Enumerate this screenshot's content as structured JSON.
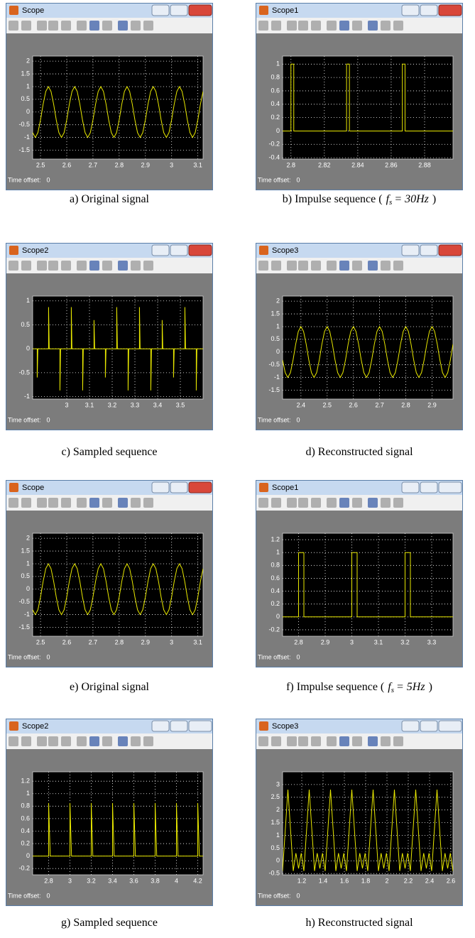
{
  "chart_data": [
    {
      "type": "line",
      "title": "Scope",
      "caption": "a) Original signal",
      "time_offset_label": "Time offset:",
      "time_offset": 0,
      "color": "#e8e800",
      "grid": true,
      "xlim": [
        2.47,
        3.12
      ],
      "ylim": [
        -1.85,
        2.2
      ],
      "xticks": [
        2.5,
        2.6,
        2.7,
        2.8,
        2.9,
        3,
        3.1
      ],
      "yticks": [
        -1.5,
        -1,
        -0.5,
        0,
        0.5,
        1,
        1.5,
        2
      ],
      "x": [
        2.47,
        2.48,
        2.49,
        2.5,
        2.51,
        2.52,
        2.53,
        2.54,
        2.55,
        2.56,
        2.57,
        2.58,
        2.59,
        2.6,
        2.61,
        2.62,
        2.63,
        2.64,
        2.65,
        2.66,
        2.67,
        2.68,
        2.69,
        2.7,
        2.71,
        2.72,
        2.73,
        2.74,
        2.75,
        2.76,
        2.77,
        2.78,
        2.79,
        2.8,
        2.81,
        2.82,
        2.83,
        2.84,
        2.85,
        2.86,
        2.87,
        2.88,
        2.89,
        2.9,
        2.91,
        2.92,
        2.93,
        2.94,
        2.95,
        2.96,
        2.97,
        2.98,
        2.99,
        3,
        3.01,
        3.02,
        3.03,
        3.04,
        3.05,
        3.06,
        3.07,
        3.08,
        3.09,
        3.1,
        3.11,
        3.12
      ],
      "values": [
        -0.81,
        -1,
        -0.81,
        -0.31,
        0.31,
        0.81,
        1,
        0.81,
        0.31,
        -0.31,
        -0.81,
        -1,
        -0.81,
        -0.31,
        0.31,
        0.81,
        1,
        0.81,
        0.31,
        -0.31,
        -0.81,
        -1,
        -0.81,
        -0.31,
        0.31,
        0.81,
        1,
        0.81,
        0.31,
        -0.31,
        -0.81,
        -1,
        -0.81,
        -0.31,
        0.31,
        0.81,
        1,
        0.81,
        0.31,
        -0.31,
        -0.81,
        -1,
        -0.81,
        -0.31,
        0.31,
        0.81,
        1,
        0.81,
        0.31,
        -0.31,
        -0.81,
        -1,
        -0.81,
        -0.31,
        0.31,
        0.81,
        1,
        0.81,
        0.31,
        -0.31,
        -0.81,
        -1,
        -0.81,
        -0.31,
        0.31,
        0.81
      ]
    },
    {
      "type": "line",
      "title": "Scope1",
      "caption": "b) Impulse sequence (",
      "fs_symbol": "f",
      "fs_subscript": "s",
      "fs_value": "= 30Hz",
      "caption_end": ")",
      "time_offset_label": "Time offset:",
      "time_offset": 0,
      "color": "#e8e800",
      "grid": true,
      "xlim": [
        2.795,
        2.897
      ],
      "ylim": [
        -0.42,
        1.12
      ],
      "xticks": [
        2.8,
        2.82,
        2.84,
        2.86,
        2.88
      ],
      "yticks": [
        -0.4,
        -0.2,
        0,
        0.2,
        0.4,
        0.6,
        0.8,
        1
      ],
      "x": [
        2.795,
        2.8,
        2.8,
        2.8017,
        2.8017,
        2.8333,
        2.8333,
        2.835,
        2.835,
        2.8667,
        2.8667,
        2.8683,
        2.8683,
        2.897
      ],
      "values": [
        0,
        0,
        1,
        1,
        0,
        0,
        1,
        1,
        0,
        0,
        1,
        1,
        0,
        0
      ]
    },
    {
      "type": "line",
      "title": "Scope2",
      "caption": "c) Sampled sequence",
      "time_offset_label": "Time offset:",
      "time_offset": 0,
      "color": "#e8e800",
      "grid": true,
      "xlim": [
        2.85,
        3.6
      ],
      "ylim": [
        -1.05,
        1.1
      ],
      "xticks": [
        3,
        3.1,
        3.2,
        3.3,
        3.4,
        3.5
      ],
      "yticks": [
        -1,
        -0.5,
        0,
        0.5,
        1
      ],
      "x": [
        2.85,
        2.87,
        2.87,
        2.873,
        2.92,
        2.92,
        2.923,
        2.97,
        2.97,
        2.973,
        3.02,
        3.02,
        3.023,
        3.07,
        3.07,
        3.073,
        3.12,
        3.12,
        3.123,
        3.17,
        3.17,
        3.173,
        3.22,
        3.22,
        3.223,
        3.27,
        3.27,
        3.273,
        3.32,
        3.32,
        3.323,
        3.37,
        3.37,
        3.373,
        3.42,
        3.42,
        3.423,
        3.47,
        3.47,
        3.473,
        3.52,
        3.52,
        3.523,
        3.57,
        3.57,
        3.573,
        3.6
      ],
      "values": [
        0,
        0,
        -0.6,
        0,
        0,
        0.87,
        0,
        0,
        -0.87,
        0,
        0,
        0.87,
        0,
        0,
        -0.87,
        0,
        0,
        0.6,
        0,
        0,
        -0.6,
        0,
        0,
        0.87,
        0,
        0,
        -0.87,
        0,
        0,
        0.87,
        0,
        0,
        -0.87,
        0,
        0,
        0.6,
        0,
        0,
        -0.6,
        0,
        0,
        0.87,
        0,
        0,
        -0.87,
        0,
        0
      ]
    },
    {
      "type": "line",
      "title": "Scope3",
      "caption": "d) Reconstructed signal",
      "time_offset_label": "Time offset:",
      "time_offset": 0,
      "color": "#e8e800",
      "grid": true,
      "xlim": [
        2.33,
        2.98
      ],
      "ylim": [
        -1.85,
        2.2
      ],
      "xticks": [
        2.4,
        2.5,
        2.6,
        2.7,
        2.8,
        2.9
      ],
      "yticks": [
        -1.5,
        -1,
        -0.5,
        0,
        0.5,
        1,
        1.5,
        2
      ],
      "x": [
        2.33,
        2.34,
        2.35,
        2.36,
        2.37,
        2.38,
        2.39,
        2.4,
        2.41,
        2.42,
        2.43,
        2.44,
        2.45,
        2.46,
        2.47,
        2.48,
        2.49,
        2.5,
        2.51,
        2.52,
        2.53,
        2.54,
        2.55,
        2.56,
        2.57,
        2.58,
        2.59,
        2.6,
        2.61,
        2.62,
        2.63,
        2.64,
        2.65,
        2.66,
        2.67,
        2.68,
        2.69,
        2.7,
        2.71,
        2.72,
        2.73,
        2.74,
        2.75,
        2.76,
        2.77,
        2.78,
        2.79,
        2.8,
        2.81,
        2.82,
        2.83,
        2.84,
        2.85,
        2.86,
        2.87,
        2.88,
        2.89,
        2.9,
        2.91,
        2.92,
        2.93,
        2.94,
        2.95,
        2.96,
        2.97,
        2.98
      ],
      "values": [
        -0.31,
        -0.81,
        -1,
        -0.81,
        -0.31,
        0.31,
        0.81,
        1,
        0.81,
        0.31,
        -0.31,
        -0.81,
        -1,
        -0.81,
        -0.31,
        0.31,
        0.81,
        1,
        0.81,
        0.31,
        -0.31,
        -0.81,
        -1,
        -0.81,
        -0.31,
        0.31,
        0.81,
        1,
        0.81,
        0.31,
        -0.31,
        -0.81,
        -1,
        -0.81,
        -0.31,
        0.31,
        0.81,
        1,
        0.81,
        0.31,
        -0.31,
        -0.81,
        -1,
        -0.81,
        -0.31,
        0.31,
        0.81,
        1,
        0.81,
        0.31,
        -0.31,
        -0.81,
        -1,
        -0.81,
        -0.31,
        0.31,
        0.81,
        1,
        0.81,
        0.31,
        -0.31,
        -0.81,
        -1,
        -0.81,
        -0.31,
        0.31
      ]
    },
    {
      "type": "line",
      "title": "Scope",
      "caption": "e) Original signal",
      "time_offset_label": "Time offset:",
      "time_offset": 0,
      "color": "#e8e800",
      "grid": true,
      "xlim": [
        2.47,
        3.12
      ],
      "ylim": [
        -1.85,
        2.2
      ],
      "xticks": [
        2.5,
        2.6,
        2.7,
        2.8,
        2.9,
        3,
        3.1
      ],
      "yticks": [
        -1.5,
        -1,
        -0.5,
        0,
        0.5,
        1,
        1.5,
        2
      ],
      "x": [
        2.47,
        2.48,
        2.49,
        2.5,
        2.51,
        2.52,
        2.53,
        2.54,
        2.55,
        2.56,
        2.57,
        2.58,
        2.59,
        2.6,
        2.61,
        2.62,
        2.63,
        2.64,
        2.65,
        2.66,
        2.67,
        2.68,
        2.69,
        2.7,
        2.71,
        2.72,
        2.73,
        2.74,
        2.75,
        2.76,
        2.77,
        2.78,
        2.79,
        2.8,
        2.81,
        2.82,
        2.83,
        2.84,
        2.85,
        2.86,
        2.87,
        2.88,
        2.89,
        2.9,
        2.91,
        2.92,
        2.93,
        2.94,
        2.95,
        2.96,
        2.97,
        2.98,
        2.99,
        3,
        3.01,
        3.02,
        3.03,
        3.04,
        3.05,
        3.06,
        3.07,
        3.08,
        3.09,
        3.1,
        3.11,
        3.12
      ],
      "values": [
        -0.81,
        -1,
        -0.81,
        -0.31,
        0.31,
        0.81,
        1,
        0.81,
        0.31,
        -0.31,
        -0.81,
        -1,
        -0.81,
        -0.31,
        0.31,
        0.81,
        1,
        0.81,
        0.31,
        -0.31,
        -0.81,
        -1,
        -0.81,
        -0.31,
        0.31,
        0.81,
        1,
        0.81,
        0.31,
        -0.31,
        -0.81,
        -1,
        -0.81,
        -0.31,
        0.31,
        0.81,
        1,
        0.81,
        0.31,
        -0.31,
        -0.81,
        -1,
        -0.81,
        -0.31,
        0.31,
        0.81,
        1,
        0.81,
        0.31,
        -0.31,
        -0.81,
        -1,
        -0.81,
        -0.31,
        0.31,
        0.81,
        1,
        0.81,
        0.31,
        -0.31,
        -0.81,
        -1,
        -0.81,
        -0.31,
        0.31,
        0.81
      ]
    },
    {
      "type": "line",
      "title": "Scope1",
      "caption": "f) Impulse sequence (",
      "fs_symbol": "f",
      "fs_subscript": "s",
      "fs_value": "= 5Hz",
      "caption_end": ")",
      "time_offset_label": "Time offset:",
      "time_offset": 0,
      "color": "#e8e800",
      "grid": true,
      "xlim": [
        2.74,
        3.38
      ],
      "ylim": [
        -0.3,
        1.3
      ],
      "xticks": [
        2.8,
        2.9,
        3,
        3.1,
        3.2,
        3.3
      ],
      "yticks": [
        -0.2,
        0,
        0.2,
        0.4,
        0.6,
        0.8,
        1,
        1.2
      ],
      "x": [
        2.74,
        2.8,
        2.8,
        2.82,
        2.82,
        3,
        3,
        3.02,
        3.02,
        3.2,
        3.2,
        3.22,
        3.22,
        3.38
      ],
      "values": [
        0,
        0,
        1,
        1,
        0,
        0,
        1,
        1,
        0,
        0,
        1,
        1,
        0,
        0
      ]
    },
    {
      "type": "line",
      "title": "Scope2",
      "caption": "g) Sampled sequence",
      "time_offset_label": "Time offset:",
      "time_offset": 0,
      "color": "#e8e800",
      "grid": true,
      "xlim": [
        2.65,
        4.25
      ],
      "ylim": [
        -0.3,
        1.35
      ],
      "xticks": [
        2.8,
        3,
        3.2,
        3.4,
        3.6,
        3.8,
        4,
        4.2
      ],
      "yticks": [
        -0.2,
        0,
        0.2,
        0.4,
        0.6,
        0.8,
        1,
        1.2
      ],
      "x": [
        2.65,
        2.8,
        2.8,
        2.815,
        3,
        3,
        3.015,
        3.2,
        3.2,
        3.215,
        3.4,
        3.4,
        3.415,
        3.6,
        3.6,
        3.615,
        3.8,
        3.8,
        3.815,
        4,
        4,
        4.015,
        4.2,
        4.2,
        4.215,
        4.25
      ],
      "values": [
        0,
        0,
        0.85,
        0,
        0,
        0.85,
        0,
        0,
        0.85,
        0,
        0,
        0.85,
        0,
        0,
        0.85,
        0,
        0,
        0.85,
        0,
        0,
        0.85,
        0,
        0,
        0.85,
        0,
        0
      ]
    },
    {
      "type": "line",
      "title": "Scope3",
      "caption": "h) Reconstructed signal",
      "time_offset_label": "Time offset:",
      "time_offset": 0,
      "color": "#e8e800",
      "grid": true,
      "xlim": [
        1.02,
        2.62
      ],
      "ylim": [
        -0.55,
        3.5
      ],
      "xticks": [
        1.2,
        1.4,
        1.6,
        1.8,
        2,
        2.2,
        2.4,
        2.6
      ],
      "yticks": [
        -0.5,
        0,
        0.5,
        1,
        1.5,
        2,
        2.5,
        3
      ],
      "x": [
        1.02,
        1.045,
        1.07,
        1.095,
        1.12,
        1.145,
        1.17,
        1.195,
        1.22,
        1.245,
        1.27,
        1.295,
        1.32,
        1.345,
        1.37,
        1.395,
        1.42,
        1.445,
        1.47,
        1.495,
        1.52,
        1.545,
        1.57,
        1.595,
        1.62,
        1.645,
        1.67,
        1.695,
        1.72,
        1.745,
        1.77,
        1.795,
        1.82,
        1.845,
        1.87,
        1.895,
        1.92,
        1.945,
        1.97,
        1.995,
        2.02,
        2.045,
        2.07,
        2.095,
        2.12,
        2.145,
        2.17,
        2.195,
        2.22,
        2.245,
        2.27,
        2.295,
        2.32,
        2.345,
        2.37,
        2.395,
        2.42,
        2.445,
        2.47,
        2.495,
        2.52,
        2.545,
        2.57,
        2.595,
        2.62
      ],
      "values": [
        -0.4,
        1.2,
        2.8,
        1.2,
        -0.4,
        0.3,
        -0.3,
        0.3,
        -0.4,
        1.2,
        2.8,
        1.2,
        -0.4,
        0.3,
        -0.3,
        0.3,
        -0.4,
        1.2,
        2.8,
        1.2,
        -0.4,
        0.3,
        -0.3,
        0.3,
        -0.4,
        1.2,
        2.8,
        1.2,
        -0.4,
        0.3,
        -0.3,
        0.3,
        -0.4,
        1.2,
        2.8,
        1.2,
        -0.4,
        0.3,
        -0.3,
        0.3,
        -0.4,
        1.2,
        2.8,
        1.2,
        -0.4,
        0.3,
        -0.3,
        0.3,
        -0.4,
        1.2,
        2.8,
        1.2,
        -0.4,
        0.3,
        -0.3,
        0.3,
        -0.4,
        1.2,
        2.8,
        1.2,
        -0.4,
        0.3,
        -0.3,
        0.3,
        -0.4
      ]
    }
  ]
}
